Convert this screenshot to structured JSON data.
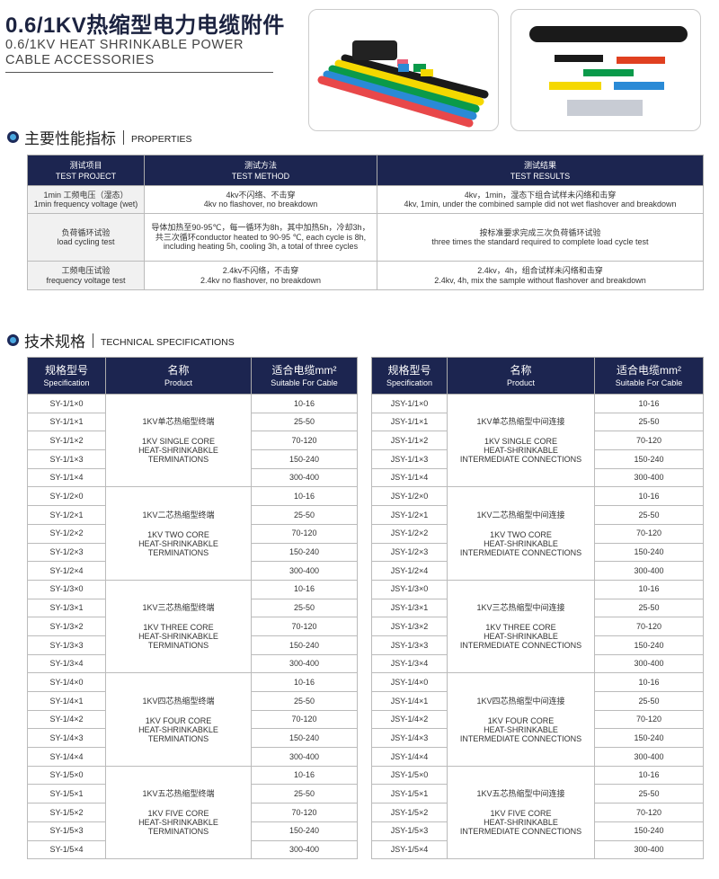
{
  "header": {
    "title": "0.6/1KV热缩型电力电缆附件",
    "subtitle_line1": "0.6/1KV HEAT SHRINKABLE POWER",
    "subtitle_line2": "CABLE ACCESSORIES"
  },
  "sections": {
    "properties": {
      "cn": "主要性能指标",
      "en": "PROPERTIES"
    },
    "technical": {
      "cn": "技术规格",
      "en": "TECHNICAL SPECIFICATIONS"
    }
  },
  "properties": {
    "headers": [
      {
        "cn": "测试项目",
        "en": "TEST PROJECT"
      },
      {
        "cn": "测试方法",
        "en": "TEST METHOD"
      },
      {
        "cn": "测试结果",
        "en": "TEST RESULTS"
      }
    ],
    "rows": [
      {
        "project": [
          "1min 工频电压（湿态）",
          "1min frequency voltage (wet)"
        ],
        "method": [
          "4kv不闪络、不击穿",
          "4kv no flashover, no breakdown"
        ],
        "result": [
          "4kv，1min，湿态下组合试样未闪络和击穿",
          "4kv, 1min, under the combined sample did not wet flashover and breakdown"
        ]
      },
      {
        "project": [
          "负荷循环试验",
          "load cycling test"
        ],
        "method": [
          "导体加热至90-95℃，每一循环为8h，其中加热5h，冷却3h，",
          "共三次循环conductor heated to 90-95 ℃, each cycle is 8h,",
          "including heating 5h, cooling 3h, a total of three cycles"
        ],
        "result": [
          "按标准要求完成三次负荷循环试验",
          "three times the standard required to complete load cycle test"
        ]
      },
      {
        "project": [
          "工频电压试验",
          "frequency voltage test"
        ],
        "method": [
          "2.4kv不闪络，不击穿",
          "2.4kv no flashover, no breakdown"
        ],
        "result": [
          "2.4kv，4h，组合试样未闪络和击穿",
          "2.4kv, 4h, mix the sample without flashover and breakdown"
        ]
      }
    ]
  },
  "spec_headers": {
    "spec_cn": "规格型号",
    "spec_en": "Specification",
    "prod_cn": "名称",
    "prod_en": "Product",
    "cable_cn": "适合电缆mm²",
    "cable_en": "Suitable For Cable"
  },
  "cable_ranges": [
    "10-16",
    "25-50",
    "70-120",
    "150-240",
    "300-400"
  ],
  "spec_tables": [
    {
      "prefix": "SY",
      "groups": [
        {
          "codes": [
            "SY-1/1×0",
            "SY-1/1×1",
            "SY-1/1×2",
            "SY-1/1×3",
            "SY-1/1×4"
          ],
          "cn": "1KV单芯热缩型终端",
          "en": [
            "1KV SINGLE CORE",
            "HEAT-SHRINKABKLE",
            "TERMINATIONS"
          ]
        },
        {
          "codes": [
            "SY-1/2×0",
            "SY-1/2×1",
            "SY-1/2×2",
            "SY-1/2×3",
            "SY-1/2×4"
          ],
          "cn": "1KV二芯热缩型终端",
          "en": [
            "1KV TWO CORE",
            "HEAT-SHRINKABKLE",
            "TERMINATIONS"
          ]
        },
        {
          "codes": [
            "SY-1/3×0",
            "SY-1/3×1",
            "SY-1/3×2",
            "SY-1/3×3",
            "SY-1/3×4"
          ],
          "cn": "1KV三芯热缩型终端",
          "en": [
            "1KV THREE CORE",
            "HEAT-SHRINKABKLE",
            "TERMINATIONS"
          ]
        },
        {
          "codes": [
            "SY-1/4×0",
            "SY-1/4×1",
            "SY-1/4×2",
            "SY-1/4×3",
            "SY-1/4×4"
          ],
          "cn": "1KV四芯热缩型终端",
          "en": [
            "1KV FOUR CORE",
            "HEAT-SHRINKABKLE",
            "TERMINATIONS"
          ]
        },
        {
          "codes": [
            "SY-1/5×0",
            "SY-1/5×1",
            "SY-1/5×2",
            "SY-1/5×3",
            "SY-1/5×4"
          ],
          "cn": "1KV五芯热缩型终端",
          "en": [
            "1KV FIVE CORE",
            "HEAT-SHRINKABKLE",
            "TERMINATIONS"
          ]
        }
      ]
    },
    {
      "prefix": "JSY",
      "groups": [
        {
          "codes": [
            "JSY-1/1×0",
            "JSY-1/1×1",
            "JSY-1/1×2",
            "JSY-1/1×3",
            "JSY-1/1×4"
          ],
          "cn": "1KV单芯热缩型中间连接",
          "en": [
            "1KV SINGLE CORE",
            "HEAT-SHRINKABLE",
            "INTERMEDIATE CONNECTIONS"
          ]
        },
        {
          "codes": [
            "JSY-1/2×0",
            "JSY-1/2×1",
            "JSY-1/2×2",
            "JSY-1/2×3",
            "JSY-1/2×4"
          ],
          "cn": "1KV二芯热缩型中间连接",
          "en": [
            "1KV TWO CORE",
            "HEAT-SHRINKABLE",
            "INTERMEDIATE CONNECTIONS"
          ]
        },
        {
          "codes": [
            "JSY-1/3×0",
            "JSY-1/3×1",
            "JSY-1/3×2",
            "JSY-1/3×3",
            "JSY-1/3×4"
          ],
          "cn": "1KV三芯热缩型中间连接",
          "en": [
            "1KV THREE CORE",
            "HEAT-SHRINKABLE",
            "INTERMEDIATE CONNECTIONS"
          ]
        },
        {
          "codes": [
            "JSY-1/4×0",
            "JSY-1/4×1",
            "JSY-1/4×2",
            "JSY-1/4×3",
            "JSY-1/4×4"
          ],
          "cn": "1KV四芯热缩型中间连接",
          "en": [
            "1KV FOUR CORE",
            "HEAT-SHRINKABLE",
            "INTERMEDIATE CONNECTIONS"
          ]
        },
        {
          "codes": [
            "JSY-1/5×0",
            "JSY-1/5×1",
            "JSY-1/5×2",
            "JSY-1/5×3",
            "JSY-1/5×4"
          ],
          "cn": "1KV五芯热缩型中间连接",
          "en": [
            "1KV FIVE CORE",
            "HEAT-SHRINKABLE",
            "INTERMEDIATE CONNECTIONS"
          ]
        }
      ]
    }
  ],
  "colors": {
    "header_navy": "#1c2550",
    "tube_red": "#e8484a",
    "tube_blue": "#2a8ad6",
    "tube_green": "#0a9a4a",
    "tube_yellow": "#f5d800",
    "tube_black": "#1a1a1a"
  }
}
